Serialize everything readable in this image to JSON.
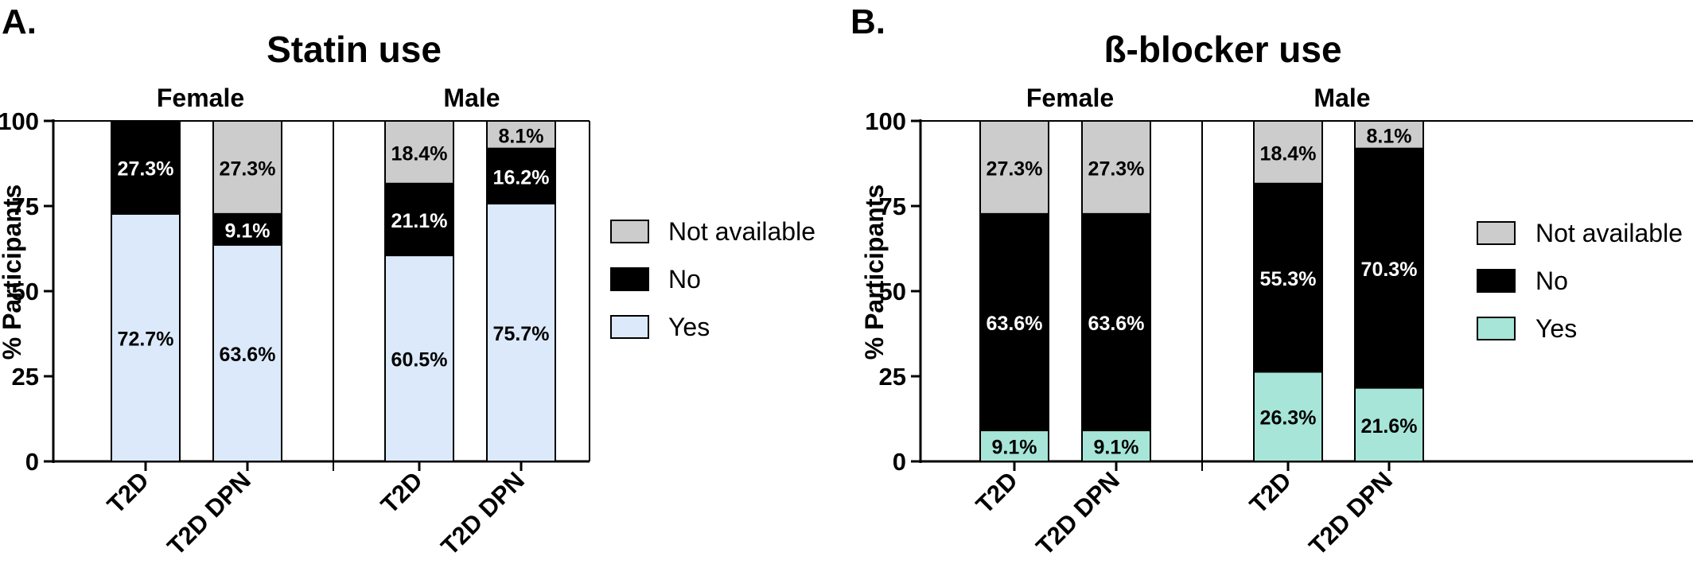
{
  "chart_data": [
    {
      "type": "bar",
      "stacked": true,
      "panel_label": "A.",
      "title": "Statin use",
      "ylabel": "% Participants",
      "ylim": [
        0,
        100
      ],
      "yticks": [
        "0",
        "25",
        "50",
        "75",
        "100"
      ],
      "group_labels": [
        "Female",
        "Male"
      ],
      "categories": [
        "T2D",
        "T2D DPN",
        "T2D",
        "T2D DPN"
      ],
      "series": [
        {
          "name": "Yes",
          "color": "#dbe9fa",
          "values": [
            72.7,
            63.6,
            60.5,
            75.7
          ],
          "labels": [
            "72.7%",
            "63.6%",
            "60.5%",
            "75.7%"
          ]
        },
        {
          "name": "No",
          "color": "#000000",
          "values": [
            27.3,
            9.1,
            21.1,
            16.2
          ],
          "labels": [
            "27.3%",
            "9.1%",
            "21.1%",
            "16.2%"
          ]
        },
        {
          "name": "Not available",
          "color": "#cccccc",
          "values": [
            0,
            27.3,
            18.4,
            8.1
          ],
          "labels": [
            "",
            "27.3%",
            "18.4%",
            "8.1%"
          ]
        }
      ],
      "legend": [
        "Not available",
        "No",
        "Yes"
      ],
      "legend_position": "right"
    },
    {
      "type": "bar",
      "stacked": true,
      "panel_label": "B.",
      "title": "ß-blocker use",
      "ylabel": "% Participants",
      "ylim": [
        0,
        100
      ],
      "yticks": [
        "0",
        "25",
        "50",
        "75",
        "100"
      ],
      "group_labels": [
        "Female",
        "Male"
      ],
      "categories": [
        "T2D",
        "T2D DPN",
        "T2D",
        "T2D DPN"
      ],
      "series": [
        {
          "name": "Yes",
          "color": "#a6e5d8",
          "values": [
            9.1,
            9.1,
            26.3,
            21.6
          ],
          "labels": [
            "9.1%",
            "9.1%",
            "26.3%",
            "21.6%"
          ]
        },
        {
          "name": "No",
          "color": "#000000",
          "values": [
            63.6,
            63.6,
            55.3,
            70.3
          ],
          "labels": [
            "63.6%",
            "63.6%",
            "55.3%",
            "70.3%"
          ]
        },
        {
          "name": "Not available",
          "color": "#cccccc",
          "values": [
            27.3,
            27.3,
            18.4,
            8.1
          ],
          "labels": [
            "27.3%",
            "27.3%",
            "18.4%",
            "8.1%"
          ]
        }
      ],
      "legend": [
        "Not available",
        "No",
        "Yes"
      ],
      "legend_position": "right"
    }
  ]
}
